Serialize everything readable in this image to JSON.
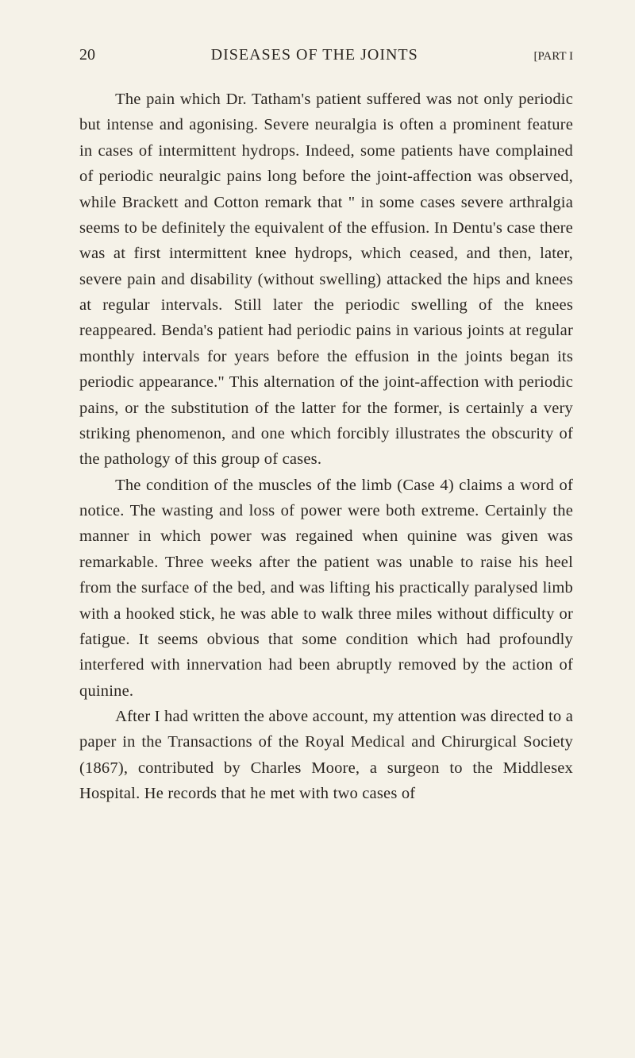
{
  "page": {
    "number": "20",
    "title": "DISEASES OF THE JOINTS",
    "part_label": "[PART I"
  },
  "paragraphs": {
    "p1": "The pain which Dr. Tatham's patient suffered was not only periodic but intense and agonising. Severe neuralgia is often a prominent feature in cases of intermittent hydrops. Indeed, some patients have complained of periodic neuralgic pains long before the joint-affection was observed, while Brackett and Cotton remark that \" in some cases severe arthralgia seems to be definitely the equivalent of the effusion. In Dentu's case there was at first intermittent knee hydrops, which ceased, and then, later, severe pain and disability (without swelling) attacked the hips and knees at regular intervals. Still later the periodic swelling of the knees reappeared. Benda's patient had periodic pains in various joints at regular monthly intervals for years before the effusion in the joints began its periodic appearance.\" This alternation of the joint-affection with periodic pains, or the substitution of the latter for the former, is certainly a very striking phenomenon, and one which forcibly illustrates the obscurity of the pathology of this group of cases.",
    "p2": "The condition of the muscles of the limb (Case 4) claims a word of notice. The wasting and loss of power were both extreme. Certainly the manner in which power was regained when quinine was given was remarkable. Three weeks after the patient was unable to raise his heel from the surface of the bed, and was lifting his practically paralysed limb with a hooked stick, he was able to walk three miles without difficulty or fatigue. It seems obvious that some condition which had profoundly interfered with innervation had been abruptly removed by the action of quinine.",
    "p3": "After I had written the above account, my attention was directed to a paper in the Transactions of the Royal Medical and Chirurgical Society (1867), contributed by Charles Moore, a surgeon to the Middlesex Hospital. He records that he met with two cases of"
  },
  "typography": {
    "body_font_size": 20.5,
    "line_height": 1.58,
    "header_font_size": 20,
    "part_font_size": 15
  },
  "colors": {
    "background": "#f5f2e8",
    "text": "#2a2520"
  }
}
